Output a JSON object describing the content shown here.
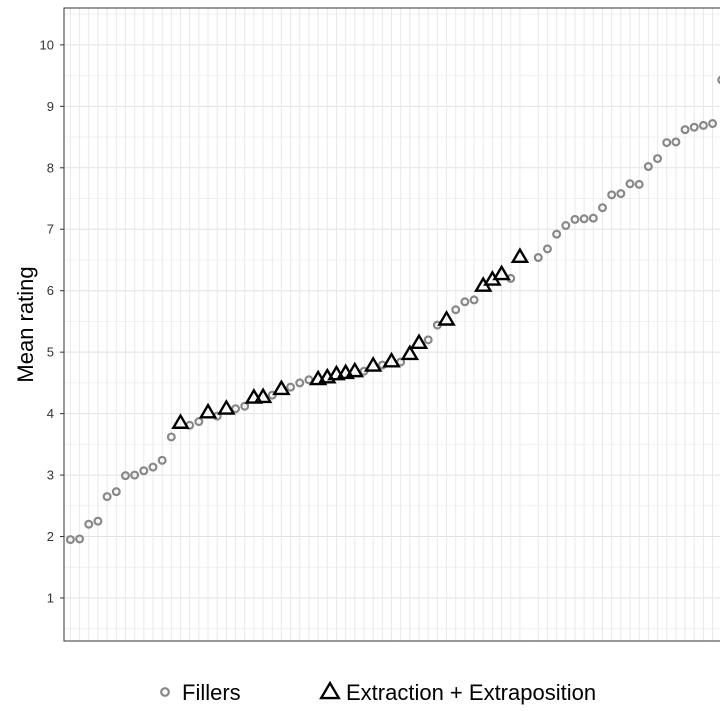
{
  "chart_data": {
    "type": "scatter",
    "xlabel": "",
    "ylabel": "Mean rating",
    "ylim": [
      0.3,
      10.6
    ],
    "yticks": [
      1,
      2,
      3,
      4,
      5,
      6,
      7,
      8,
      9,
      10
    ],
    "grid": true,
    "legend_position": "bottom",
    "series": [
      {
        "name": "Fillers",
        "marker": "open-circle",
        "color": "#888888",
        "points": [
          {
            "x": 1,
            "y": 1.95
          },
          {
            "x": 2,
            "y": 1.96
          },
          {
            "x": 3,
            "y": 2.2
          },
          {
            "x": 4,
            "y": 2.25
          },
          {
            "x": 5,
            "y": 2.65
          },
          {
            "x": 6,
            "y": 2.73
          },
          {
            "x": 7,
            "y": 2.99
          },
          {
            "x": 8,
            "y": 3.0
          },
          {
            "x": 9,
            "y": 3.07
          },
          {
            "x": 10,
            "y": 3.13
          },
          {
            "x": 11,
            "y": 3.24
          },
          {
            "x": 12,
            "y": 3.62
          },
          {
            "x": 14,
            "y": 3.81
          },
          {
            "x": 15,
            "y": 3.87
          },
          {
            "x": 17,
            "y": 3.96
          },
          {
            "x": 19,
            "y": 4.08
          },
          {
            "x": 20,
            "y": 4.12
          },
          {
            "x": 23,
            "y": 4.3
          },
          {
            "x": 25,
            "y": 4.43
          },
          {
            "x": 26,
            "y": 4.5
          },
          {
            "x": 27,
            "y": 4.55
          },
          {
            "x": 33,
            "y": 4.69
          },
          {
            "x": 35,
            "y": 4.79
          },
          {
            "x": 37,
            "y": 4.84
          },
          {
            "x": 40,
            "y": 5.2
          },
          {
            "x": 41,
            "y": 5.44
          },
          {
            "x": 43,
            "y": 5.69
          },
          {
            "x": 44,
            "y": 5.82
          },
          {
            "x": 45,
            "y": 5.85
          },
          {
            "x": 49,
            "y": 6.2
          },
          {
            "x": 52,
            "y": 6.54
          },
          {
            "x": 53,
            "y": 6.68
          },
          {
            "x": 54,
            "y": 6.92
          },
          {
            "x": 55,
            "y": 7.06
          },
          {
            "x": 56,
            "y": 7.16
          },
          {
            "x": 57,
            "y": 7.17
          },
          {
            "x": 58,
            "y": 7.18
          },
          {
            "x": 59,
            "y": 7.35
          },
          {
            "x": 60,
            "y": 7.56
          },
          {
            "x": 61,
            "y": 7.58
          },
          {
            "x": 62,
            "y": 7.74
          },
          {
            "x": 63,
            "y": 7.73
          },
          {
            "x": 64,
            "y": 8.02
          },
          {
            "x": 65,
            "y": 8.15
          },
          {
            "x": 66,
            "y": 8.41
          },
          {
            "x": 67,
            "y": 8.42
          },
          {
            "x": 68,
            "y": 8.62
          },
          {
            "x": 69,
            "y": 8.66
          },
          {
            "x": 70,
            "y": 8.69
          },
          {
            "x": 71,
            "y": 8.72
          },
          {
            "x": 72,
            "y": 9.43
          }
        ]
      },
      {
        "name": "Extraction + Extraposition",
        "marker": "open-triangle",
        "color": "#000000",
        "points": [
          {
            "x": 13,
            "y": 3.85
          },
          {
            "x": 16,
            "y": 4.02
          },
          {
            "x": 18,
            "y": 4.08
          },
          {
            "x": 21,
            "y": 4.26
          },
          {
            "x": 22,
            "y": 4.27
          },
          {
            "x": 24,
            "y": 4.4
          },
          {
            "x": 28,
            "y": 4.56
          },
          {
            "x": 29,
            "y": 4.59
          },
          {
            "x": 30,
            "y": 4.64
          },
          {
            "x": 31,
            "y": 4.66
          },
          {
            "x": 32,
            "y": 4.69
          },
          {
            "x": 34,
            "y": 4.78
          },
          {
            "x": 36,
            "y": 4.85
          },
          {
            "x": 38,
            "y": 4.97
          },
          {
            "x": 39,
            "y": 5.15
          },
          {
            "x": 42,
            "y": 5.53
          },
          {
            "x": 46,
            "y": 6.08
          },
          {
            "x": 47,
            "y": 6.18
          },
          {
            "x": 48,
            "y": 6.27
          },
          {
            "x": 50,
            "y": 6.55
          }
        ]
      }
    ]
  }
}
